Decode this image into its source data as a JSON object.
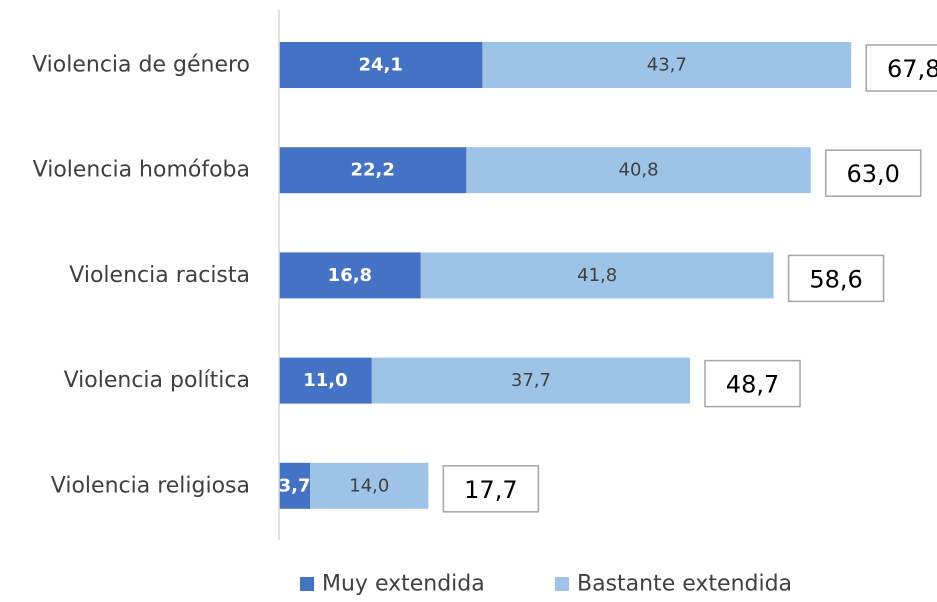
{
  "chart_data": {
    "type": "bar",
    "orientation": "horizontal",
    "stacked": true,
    "categories": [
      "Violencia de género",
      "Violencia homófoba",
      "Violencia racista",
      "Violencia política",
      "Violencia religiosa"
    ],
    "series": [
      {
        "name": "Muy extendida",
        "values": [
          24.1,
          22.2,
          16.8,
          11.0,
          3.7
        ],
        "color": "#4472c4"
      },
      {
        "name": "Bastante extendida",
        "values": [
          43.7,
          40.8,
          41.8,
          37.7,
          14.0
        ],
        "color": "#9dc3e6"
      }
    ],
    "value_labels": [
      [
        "24,1",
        "22,2",
        "16,8",
        "11,0",
        "3,7"
      ],
      [
        "43,7",
        "40,8",
        "41,8",
        "37,7",
        "14,0"
      ]
    ],
    "totals": [
      67.8,
      63.0,
      58.6,
      48.7,
      17.7
    ],
    "total_labels": [
      "67,8",
      "63,0",
      "58,6",
      "48,7",
      "17,7"
    ],
    "grid": false,
    "legend_position": "bottom"
  }
}
